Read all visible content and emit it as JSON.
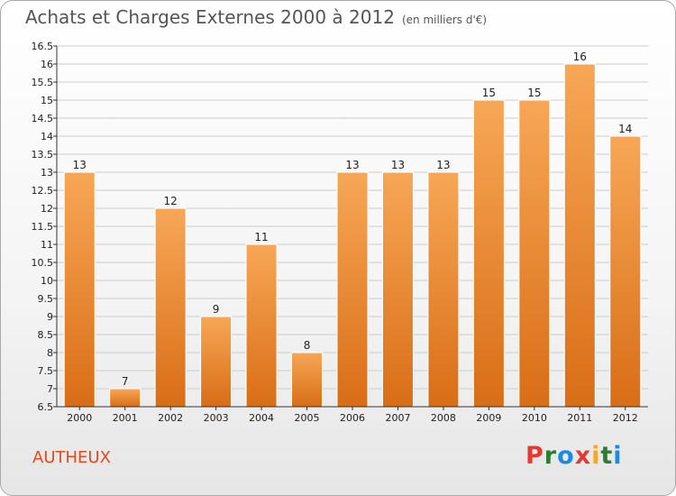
{
  "header": {
    "title": "Achats et Charges Externes 2000 à 2012",
    "unit": "(en milliers d'€)"
  },
  "commune": "AUTHEUX",
  "logo": {
    "text": "Proxiti",
    "letter_colors": [
      "#e53935",
      "#2e7d32",
      "#1e88e5",
      "#e53935",
      "#f9a825",
      "#2e7d32",
      "#1e88e5"
    ]
  },
  "colors": {
    "bar_top": "#f7a756",
    "bar_bottom": "#d96d16",
    "axis": "#333333",
    "grid": "#cccccc"
  },
  "chart_data": {
    "type": "bar",
    "title": "Achats et Charges Externes 2000 à 2012",
    "categories": [
      "2000",
      "2001",
      "2002",
      "2003",
      "2004",
      "2005",
      "2006",
      "2007",
      "2008",
      "2009",
      "2010",
      "2011",
      "2012"
    ],
    "values": [
      13,
      7,
      12,
      9,
      11,
      8,
      13,
      13,
      13,
      15,
      15,
      16,
      14
    ],
    "data_labels": [
      "13",
      "7",
      "12",
      "9",
      "11",
      "8",
      "13",
      "13",
      "13",
      "15",
      "15",
      "16",
      "14"
    ],
    "ylim": [
      6.5,
      16.5
    ],
    "yticks": [
      6.5,
      7,
      7.5,
      8,
      8.5,
      9,
      9.5,
      10,
      10.5,
      11,
      11.5,
      12,
      12.5,
      13,
      13.5,
      14,
      14.5,
      15,
      15.5,
      16,
      16.5
    ],
    "ytick_labels": [
      "6.5",
      "7",
      "7.5",
      "8",
      "8.5",
      "9",
      "9.5",
      "10",
      "10.5",
      "11",
      "11.5",
      "12",
      "12.5",
      "13",
      "13.5",
      "14",
      "14.5",
      "15",
      "15.5",
      "16",
      "16.5"
    ],
    "grid": true
  }
}
